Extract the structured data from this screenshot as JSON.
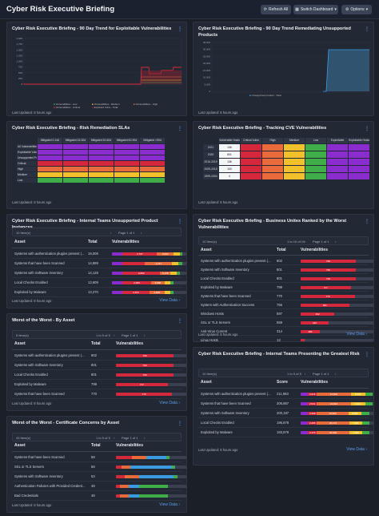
{
  "page": {
    "title": "Cyber Risk Executive Briefing",
    "refresh": "Refresh All",
    "switch": "Switch Dashboard",
    "options": "Options"
  },
  "colors": {
    "critical": "#d6283d",
    "high": "#e96a3b",
    "medium": "#f2c02a",
    "low": "#3fae49",
    "blue": "#3b9be0",
    "purple": "#8b2ccf"
  },
  "p1": {
    "title": "Cyber Risk Executive Briefing - 90 Day Trend for Exploitable Vulnerabilities",
    "updated": "Last Updated: 8 hours ago",
    "yticks": [
      "2,000",
      "1,750",
      "1,500",
      "1,250",
      "1,000",
      "750",
      "500",
      "250",
      "0"
    ],
    "legend": [
      "Vulnerabilities - Low",
      "Vulnerabilities - Medium",
      "Vulnerabilities - High",
      "Vulnerabilities - Critical",
      "Exploited Vulns - Total"
    ]
  },
  "p2": {
    "title": "Cyber Risk Executive Briefing - 90 Day Trend Remediating Unsupported Products",
    "updated": "Last Updated: 8 hours ago",
    "yticks": [
      "35,000",
      "30,000",
      "25,000",
      "20,000",
      "15,000",
      "10,000",
      "5,000",
      "0"
    ],
    "legend": [
      "Unsupported product - Total"
    ]
  },
  "p3": {
    "title": "Cyber Risk Executive Briefing - Risk Remediation SLAs",
    "updated": "Last Updated: 8 hours ago",
    "cols": [
      "Mitigated 0-14d",
      "Mitigated 15-30d",
      "Mitigated 30-60d",
      "Mitigated 60-90d",
      "Mitigated >90d"
    ],
    "rows": [
      "All Vulnerabilities",
      "Exploitable Vuln",
      "Unsupported Prod",
      "Critical",
      "High",
      "Medium",
      "Low"
    ]
  },
  "p4": {
    "title": "Cyber Risk Executive Briefing - Tracking CVE Vulnerabilities",
    "updated": "Last Updated: 8 hours ago",
    "cols": [
      "Vulnerable Hosts",
      "Critical Vulns",
      "High",
      "Medium",
      "Low",
      "Exploitable",
      "Exploitable Hosts"
    ],
    "rows": [
      {
        "label": "2021",
        "v": "136"
      },
      {
        "label": "2020",
        "v": "801"
      },
      {
        "label": "2016-2019",
        "v": "136"
      },
      {
        "label": "2005-2015",
        "v": "100"
      },
      {
        "label": "1999-2004",
        "v": "4"
      }
    ]
  },
  "p5": {
    "title": "Cyber Risk Executive Briefing - Internal Teams Unsupported Product Instances",
    "items": "10 Item(s)",
    "page": "Page 1 of 1",
    "h_asset": "Asset",
    "h_total": "Total",
    "h_vuln": "Vulnerabilities",
    "updated": "Last Updated: 8 hours ago",
    "view": "View Data",
    "rows": [
      {
        "a": "Systems with authentication plugins present (...",
        "t": "19,008",
        "s": [
          "2,737",
          "6,002"
        ]
      },
      {
        "a": "Systems that have been Scanned",
        "t": "14,899",
        "s": [
          "",
          "4,187"
        ]
      },
      {
        "a": "Systems with Software Inventory",
        "t": "14,128",
        "s": [
          "2,869",
          "6,178"
        ]
      },
      {
        "a": "Local Checks Enabled",
        "t": "13,609",
        "s": [
          "2,969",
          "5,008"
        ]
      },
      {
        "a": "Exploited by Malware",
        "t": "13,270",
        "s": [
          "2,871",
          "4,820"
        ]
      }
    ]
  },
  "p6": {
    "title": "Cyber Risk Executive Briefing - Business Unites Ranked by the Worst Vulnerabilities",
    "items": "10 Item(s)",
    "pg": "1 to 10 of 10",
    "page": "Page 1 of 1",
    "h_asset": "Asset",
    "h_total": "Total",
    "h_vuln": "Vulnerabilities",
    "updated": "Last Updated: 8 hours ago",
    "view": "View Data",
    "rows": [
      {
        "a": "Systems with authentication plugins present (...",
        "t": "802",
        "s": "799"
      },
      {
        "a": "Systems with Software Inventory",
        "t": "801",
        "s": "799"
      },
      {
        "a": "Local Checks Enabled",
        "t": "801",
        "s": "799"
      },
      {
        "a": "Exploited by Malware",
        "t": "799",
        "s": "717"
      },
      {
        "a": "Systems that have been Scanned",
        "t": "770",
        "s": "770"
      },
      {
        "a": "System with Authentication Success",
        "t": "755",
        "s": "691"
      },
      {
        "a": "Windows Hosts",
        "t": "597",
        "s": "492"
      },
      {
        "a": "SSL or TLS Servers",
        "t": "559",
        "s": "412"
      },
      {
        "a": "Anti-Virus Current",
        "t": "314",
        "s": "286"
      },
      {
        "a": "Linux Hosts",
        "t": "13",
        "s": ""
      }
    ]
  },
  "p7": {
    "title": "Worst of the Worst - By Asset",
    "items": "5 Item(s)",
    "pg": "1 to 5 of 5",
    "page": "Page 1 of 1",
    "h_asset": "Asset",
    "h_total": "Total",
    "h_vuln": "Vulnerabilities",
    "updated": "Last Updated: 8 hours ago",
    "view": "View Data",
    "rows": [
      {
        "a": "Systems with authentication plugins present (...",
        "t": "802",
        "s": "799"
      },
      {
        "a": "Systems with Software Inventory",
        "t": "801",
        "s": "799"
      },
      {
        "a": "Local Checks Enabled",
        "t": "801",
        "s": "799"
      },
      {
        "a": "Exploited by Malware",
        "t": "799",
        "s": "717"
      },
      {
        "a": "Systems that have been Scanned",
        "t": "770",
        "s": "770"
      }
    ]
  },
  "p8": {
    "title": "Cyber Risk Executive Briefing - Internal Teams Presenting the Greatest Risk",
    "items": "10 Item(s)",
    "pg": "1 to 5 of 5",
    "page": "Page 1 of 1",
    "h_asset": "Asset",
    "h_total": "Score",
    "h_vuln": "Vulnerabilities",
    "updated": "Last Updated: 8 hours ago",
    "view": "View Data",
    "rows": [
      {
        "a": "Systems with authentication plugins present (...",
        "t": "211,983",
        "s": [
          "2,574",
          "21,816",
          "8,221"
        ]
      },
      {
        "a": "Systems that have been Scanned",
        "t": "206,867",
        "s": [
          "2,541",
          "21,813",
          "8,200"
        ]
      },
      {
        "a": "Systems with Software Inventory",
        "t": "200,187",
        "s": [
          "2,508",
          "19,950",
          "8,002"
        ]
      },
      {
        "a": "Local Checks Enabled",
        "t": "196,878",
        "s": [
          "2,465",
          "20,174",
          "7,946"
        ]
      },
      {
        "a": "Exploited by Malware",
        "t": "193,879",
        "s": [
          "2,476",
          "20,006",
          "7,993"
        ]
      }
    ]
  },
  "p9": {
    "title": "Worst of the Worst - Certificate Concerns by Asset",
    "items": "43 Item(s)",
    "pg": "1 to 5 of 5",
    "page": "Page 1 of 1",
    "h_asset": "Asset",
    "h_total": "Total",
    "h_vuln": "Vulnerabilities",
    "updated": "Last Updated: 8 hours ago",
    "view": "View Data",
    "rows": [
      {
        "a": "Systems that have been Scanned",
        "t": "58"
      },
      {
        "a": "SSL or TLS Servers",
        "t": "58"
      },
      {
        "a": "Systems with Software Inventory",
        "t": "53"
      },
      {
        "a": "Authentication Failures with Provided Credent...",
        "t": "48"
      },
      {
        "a": "Bad Credentials",
        "t": "48"
      }
    ]
  }
}
